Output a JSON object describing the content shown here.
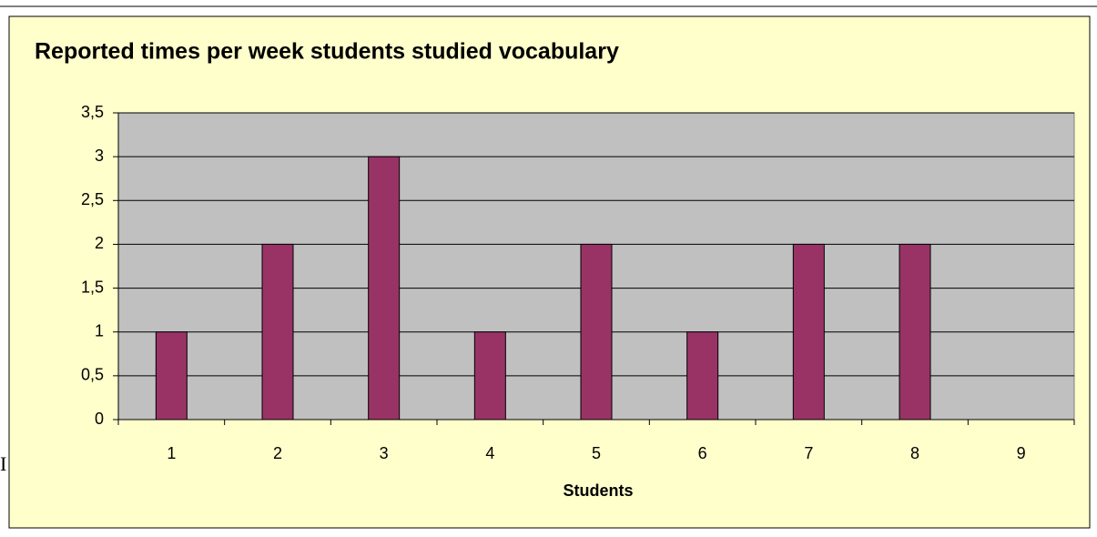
{
  "document_text": "I",
  "chart_data": {
    "type": "bar",
    "title": "Reported times per week students studied vocabulary",
    "x_label": "Students",
    "categories": [
      "1",
      "2",
      "3",
      "4",
      "5",
      "6",
      "7",
      "8",
      "9"
    ],
    "values": [
      1,
      2,
      3,
      1,
      2,
      1,
      2,
      2,
      null
    ],
    "color": "#993366",
    "ylim": [
      0,
      3.5
    ],
    "yticks": [
      0,
      {
        "value": 0.5,
        "label": "0,5"
      },
      1,
      {
        "value": 1.5,
        "label": "1,5"
      },
      2,
      {
        "value": 2.5,
        "label": "2,5"
      },
      3,
      {
        "value": 3.5,
        "label": "3,5"
      }
    ],
    "grid": true
  }
}
